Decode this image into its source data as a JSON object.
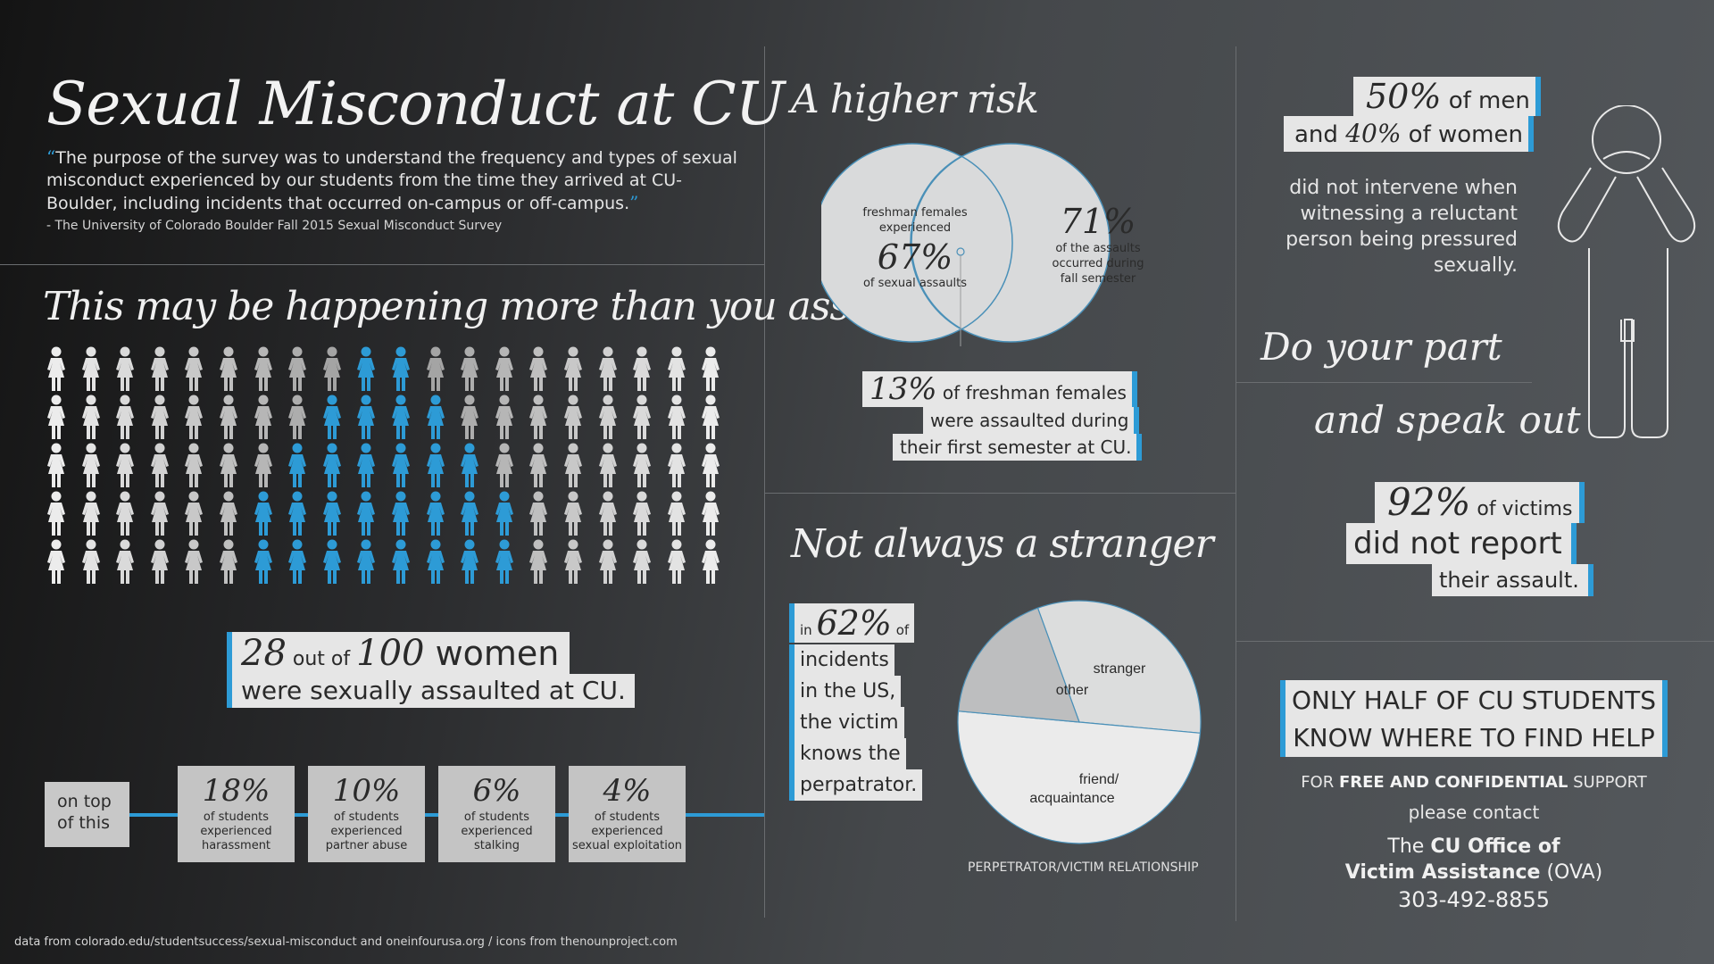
{
  "header": {
    "title": "Sexual Misconduct at CU",
    "open_quote": "“",
    "close_quote": "”",
    "quote": "The purpose of the survey was to understand the frequency and types of sexual misconduct experienced by our students from the time they arrived at CU-Boulder, including incidents that occurred on-campus or off-campus.",
    "source": "- The University of Colorado Boulder Fall 2015 Sexual Misconduct Survey"
  },
  "happening": {
    "heading": "This may be happening more than you assume",
    "grid": {
      "rows": 5,
      "cols": 20,
      "highlighted": 28,
      "highlight_color": "#2d9bd6"
    },
    "callout": {
      "num1": "28",
      "out_of": " out of ",
      "num2": "100",
      "women": " women",
      "line2": "were sexually assaulted at CU."
    }
  },
  "stats": {
    "on_top_line1": "on top",
    "on_top_line2": "of this",
    "items": [
      {
        "pct": "18%",
        "line1": "of students",
        "line2": "experienced",
        "line3": "harassment"
      },
      {
        "pct": "10%",
        "line1": "of students",
        "line2": "experienced",
        "line3": "partner abuse"
      },
      {
        "pct": "6%",
        "line1": "of students",
        "line2": "experienced",
        "line3": "stalking"
      },
      {
        "pct": "4%",
        "line1": "of students",
        "line2": "experienced",
        "line3": "sexual exploitation"
      }
    ]
  },
  "risk": {
    "heading": "A higher risk",
    "left_label_1": "freshman females",
    "left_label_2": "experienced",
    "left_pct": "67%",
    "left_sub": "of sexual assaults",
    "right_pct": "71%",
    "right_label_1": "of the assaults",
    "right_label_2": "occurred during",
    "right_label_3": "fall semester",
    "callout_num": "13%",
    "callout_1": " of freshman females",
    "callout_2": "were assaulted during",
    "callout_3": "their first semester at CU."
  },
  "stranger": {
    "heading": "Not always a stranger",
    "in": "in ",
    "pct": "62%",
    "of": " of",
    "lines": [
      "incidents",
      "in the US,",
      "the victim",
      "knows the",
      "perpatrator."
    ],
    "pie_caption": "PERPETRATOR/VICTIM RELATIONSHIP",
    "slice_other": "other",
    "slice_stranger": "stranger",
    "slice_friend_1": "friend/",
    "slice_friend_2": "acquaintance"
  },
  "chart_data": {
    "type": "pie",
    "categories": [
      "stranger",
      "friend/ acquaintance",
      "other"
    ],
    "values": [
      32,
      50,
      18
    ],
    "title": "PERPETRATOR/VICTIM RELATIONSHIP"
  },
  "intervene": {
    "num1": "50%",
    "of_men": " of men",
    "and": "and ",
    "num2": "40%",
    "of_women": " of women",
    "desc_1": "did not intervene when",
    "desc_2": "witnessing a reluctant",
    "desc_3": "person being pressured",
    "desc_4": "sexually."
  },
  "do_part": {
    "heading1": "Do your part",
    "heading2": "and speak out"
  },
  "report": {
    "num": "92%",
    "of_victims": " of victims",
    "line2": "did not report",
    "line3": "their assault."
  },
  "help": {
    "line1": "ONLY HALF OF CU STUDENTS",
    "line2": "KNOW WHERE TO FIND HELP",
    "for": "FOR ",
    "free_conf": "FREE AND CONFIDENTIAL",
    "support": " SUPPORT",
    "please": "please contact",
    "the": "The ",
    "office_1": "CU Office of",
    "office_2": "Victim Assistance",
    "ova": " (OVA)",
    "phone": "303-492-8855"
  },
  "footer": {
    "credit": "data from colorado.edu/studentsuccess/sexual-misconduct and oneinfourusa.org / icons from thenounproject.com"
  },
  "colors": {
    "accent": "#2d9bd6",
    "box_light": "#e6e6e6",
    "box_gray": "#c4c4c4"
  }
}
